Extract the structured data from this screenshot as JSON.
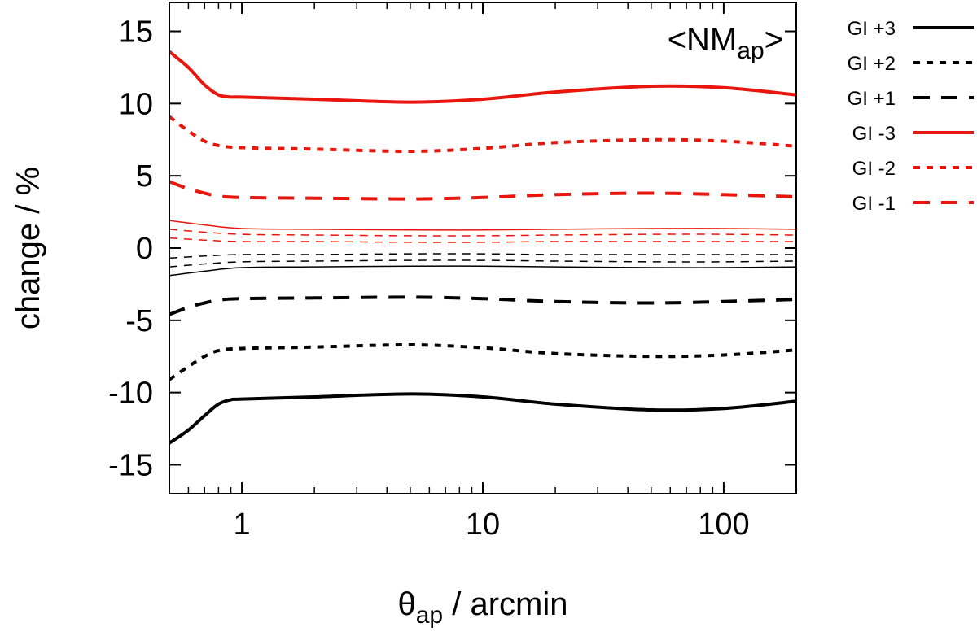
{
  "chart_data": {
    "type": "line",
    "annotation": {
      "main": "<NM",
      "sub": "ap",
      "close": ">"
    },
    "xlabel": {
      "symbol": "θ",
      "sub": "ap",
      "rest": " / arcmin"
    },
    "ylabel": "change / %",
    "xscale": "log",
    "xlim": [
      0.5,
      200
    ],
    "ylim": [
      -17,
      17
    ],
    "xticks": [
      1,
      10,
      100
    ],
    "xtick_labels": [
      "1",
      "10",
      "100"
    ],
    "yticks": [
      15,
      10,
      5,
      0,
      -5,
      -10,
      -15
    ],
    "ytick_labels": [
      "15",
      "10",
      "5",
      "0",
      "-5",
      "-10",
      "-15"
    ],
    "grid": false,
    "legend_position": "outside-right",
    "series": [
      {
        "name": "GI +3",
        "color": "#000000",
        "dash": "solid",
        "legend": true,
        "x": [
          0.5,
          0.6,
          0.7,
          0.8,
          0.9,
          1,
          2,
          5,
          10,
          20,
          50,
          100,
          200
        ],
        "y": [
          -13.5,
          -12.6,
          -11.6,
          -10.8,
          -10.5,
          -10.45,
          -10.3,
          -10.1,
          -10.3,
          -10.8,
          -11.2,
          -11.1,
          -10.6
        ]
      },
      {
        "name": "GI +2",
        "color": "#000000",
        "dash": "dot",
        "legend": true,
        "x": [
          0.5,
          0.6,
          0.7,
          0.8,
          1,
          2,
          5,
          10,
          20,
          50,
          100,
          200
        ],
        "y": [
          -9.1,
          -8.2,
          -7.5,
          -7.1,
          -6.95,
          -6.85,
          -6.7,
          -6.9,
          -7.3,
          -7.5,
          -7.4,
          -7.05
        ]
      },
      {
        "name": "GI +1",
        "color": "#000000",
        "dash": "dash",
        "legend": true,
        "x": [
          0.5,
          0.6,
          0.7,
          0.8,
          1,
          2,
          5,
          10,
          20,
          50,
          100,
          200
        ],
        "y": [
          -4.6,
          -4.1,
          -3.8,
          -3.6,
          -3.5,
          -3.45,
          -3.4,
          -3.5,
          -3.7,
          -3.8,
          -3.7,
          -3.55
        ]
      },
      {
        "name": "GI -3",
        "color": "#e8160c",
        "dash": "solid",
        "legend": true,
        "x": [
          0.5,
          0.6,
          0.7,
          0.8,
          0.9,
          1,
          2,
          5,
          10,
          20,
          50,
          100,
          200
        ],
        "y": [
          13.6,
          12.5,
          11.3,
          10.6,
          10.45,
          10.45,
          10.3,
          10.1,
          10.3,
          10.8,
          11.2,
          11.1,
          10.6
        ]
      },
      {
        "name": "GI -2",
        "color": "#e8160c",
        "dash": "dot",
        "legend": true,
        "x": [
          0.5,
          0.6,
          0.7,
          0.8,
          1,
          2,
          5,
          10,
          20,
          50,
          100,
          200
        ],
        "y": [
          9.1,
          8.1,
          7.4,
          7.1,
          6.95,
          6.85,
          6.7,
          6.9,
          7.3,
          7.5,
          7.4,
          7.05
        ]
      },
      {
        "name": "GI -1",
        "color": "#e8160c",
        "dash": "dash",
        "legend": true,
        "x": [
          0.5,
          0.6,
          0.7,
          0.8,
          1,
          2,
          5,
          10,
          20,
          50,
          100,
          200
        ],
        "y": [
          4.6,
          4.1,
          3.8,
          3.6,
          3.5,
          3.45,
          3.4,
          3.5,
          3.7,
          3.8,
          3.7,
          3.55
        ]
      },
      {
        "name": "",
        "color": "#e8160c",
        "dash": "solid",
        "thin": true,
        "legend": false,
        "x": [
          0.5,
          0.7,
          1,
          2,
          5,
          10,
          20,
          50,
          100,
          200
        ],
        "y": [
          1.9,
          1.6,
          1.35,
          1.3,
          1.25,
          1.25,
          1.3,
          1.35,
          1.35,
          1.3
        ]
      },
      {
        "name": "",
        "color": "#e8160c",
        "dash": "dash",
        "thin": true,
        "legend": false,
        "x": [
          0.5,
          0.7,
          1,
          2,
          5,
          10,
          20,
          50,
          100,
          200
        ],
        "y": [
          1.3,
          1.1,
          0.95,
          0.9,
          0.85,
          0.85,
          0.9,
          0.95,
          0.95,
          0.9
        ]
      },
      {
        "name": "",
        "color": "#e8160c",
        "dash": "dash",
        "thin": true,
        "legend": false,
        "x": [
          0.5,
          0.7,
          1,
          2,
          5,
          10,
          20,
          50,
          100,
          200
        ],
        "y": [
          0.7,
          0.55,
          0.45,
          0.45,
          0.4,
          0.4,
          0.45,
          0.45,
          0.45,
          0.45
        ]
      },
      {
        "name": "",
        "color": "#000000",
        "dash": "dash",
        "thin": true,
        "legend": false,
        "x": [
          0.5,
          0.7,
          1,
          2,
          5,
          10,
          20,
          50,
          100,
          200
        ],
        "y": [
          -0.7,
          -0.55,
          -0.45,
          -0.45,
          -0.4,
          -0.4,
          -0.45,
          -0.45,
          -0.45,
          -0.45
        ]
      },
      {
        "name": "",
        "color": "#000000",
        "dash": "dash",
        "thin": true,
        "legend": false,
        "x": [
          0.5,
          0.7,
          1,
          2,
          5,
          10,
          20,
          50,
          100,
          200
        ],
        "y": [
          -1.3,
          -1.1,
          -0.95,
          -0.9,
          -0.85,
          -0.85,
          -0.9,
          -0.95,
          -0.95,
          -0.9
        ]
      },
      {
        "name": "",
        "color": "#000000",
        "dash": "solid",
        "thin": true,
        "legend": false,
        "x": [
          0.5,
          0.7,
          1,
          2,
          5,
          10,
          20,
          50,
          100,
          200
        ],
        "y": [
          -1.9,
          -1.6,
          -1.35,
          -1.3,
          -1.25,
          -1.25,
          -1.3,
          -1.35,
          -1.35,
          -1.3
        ]
      }
    ]
  }
}
